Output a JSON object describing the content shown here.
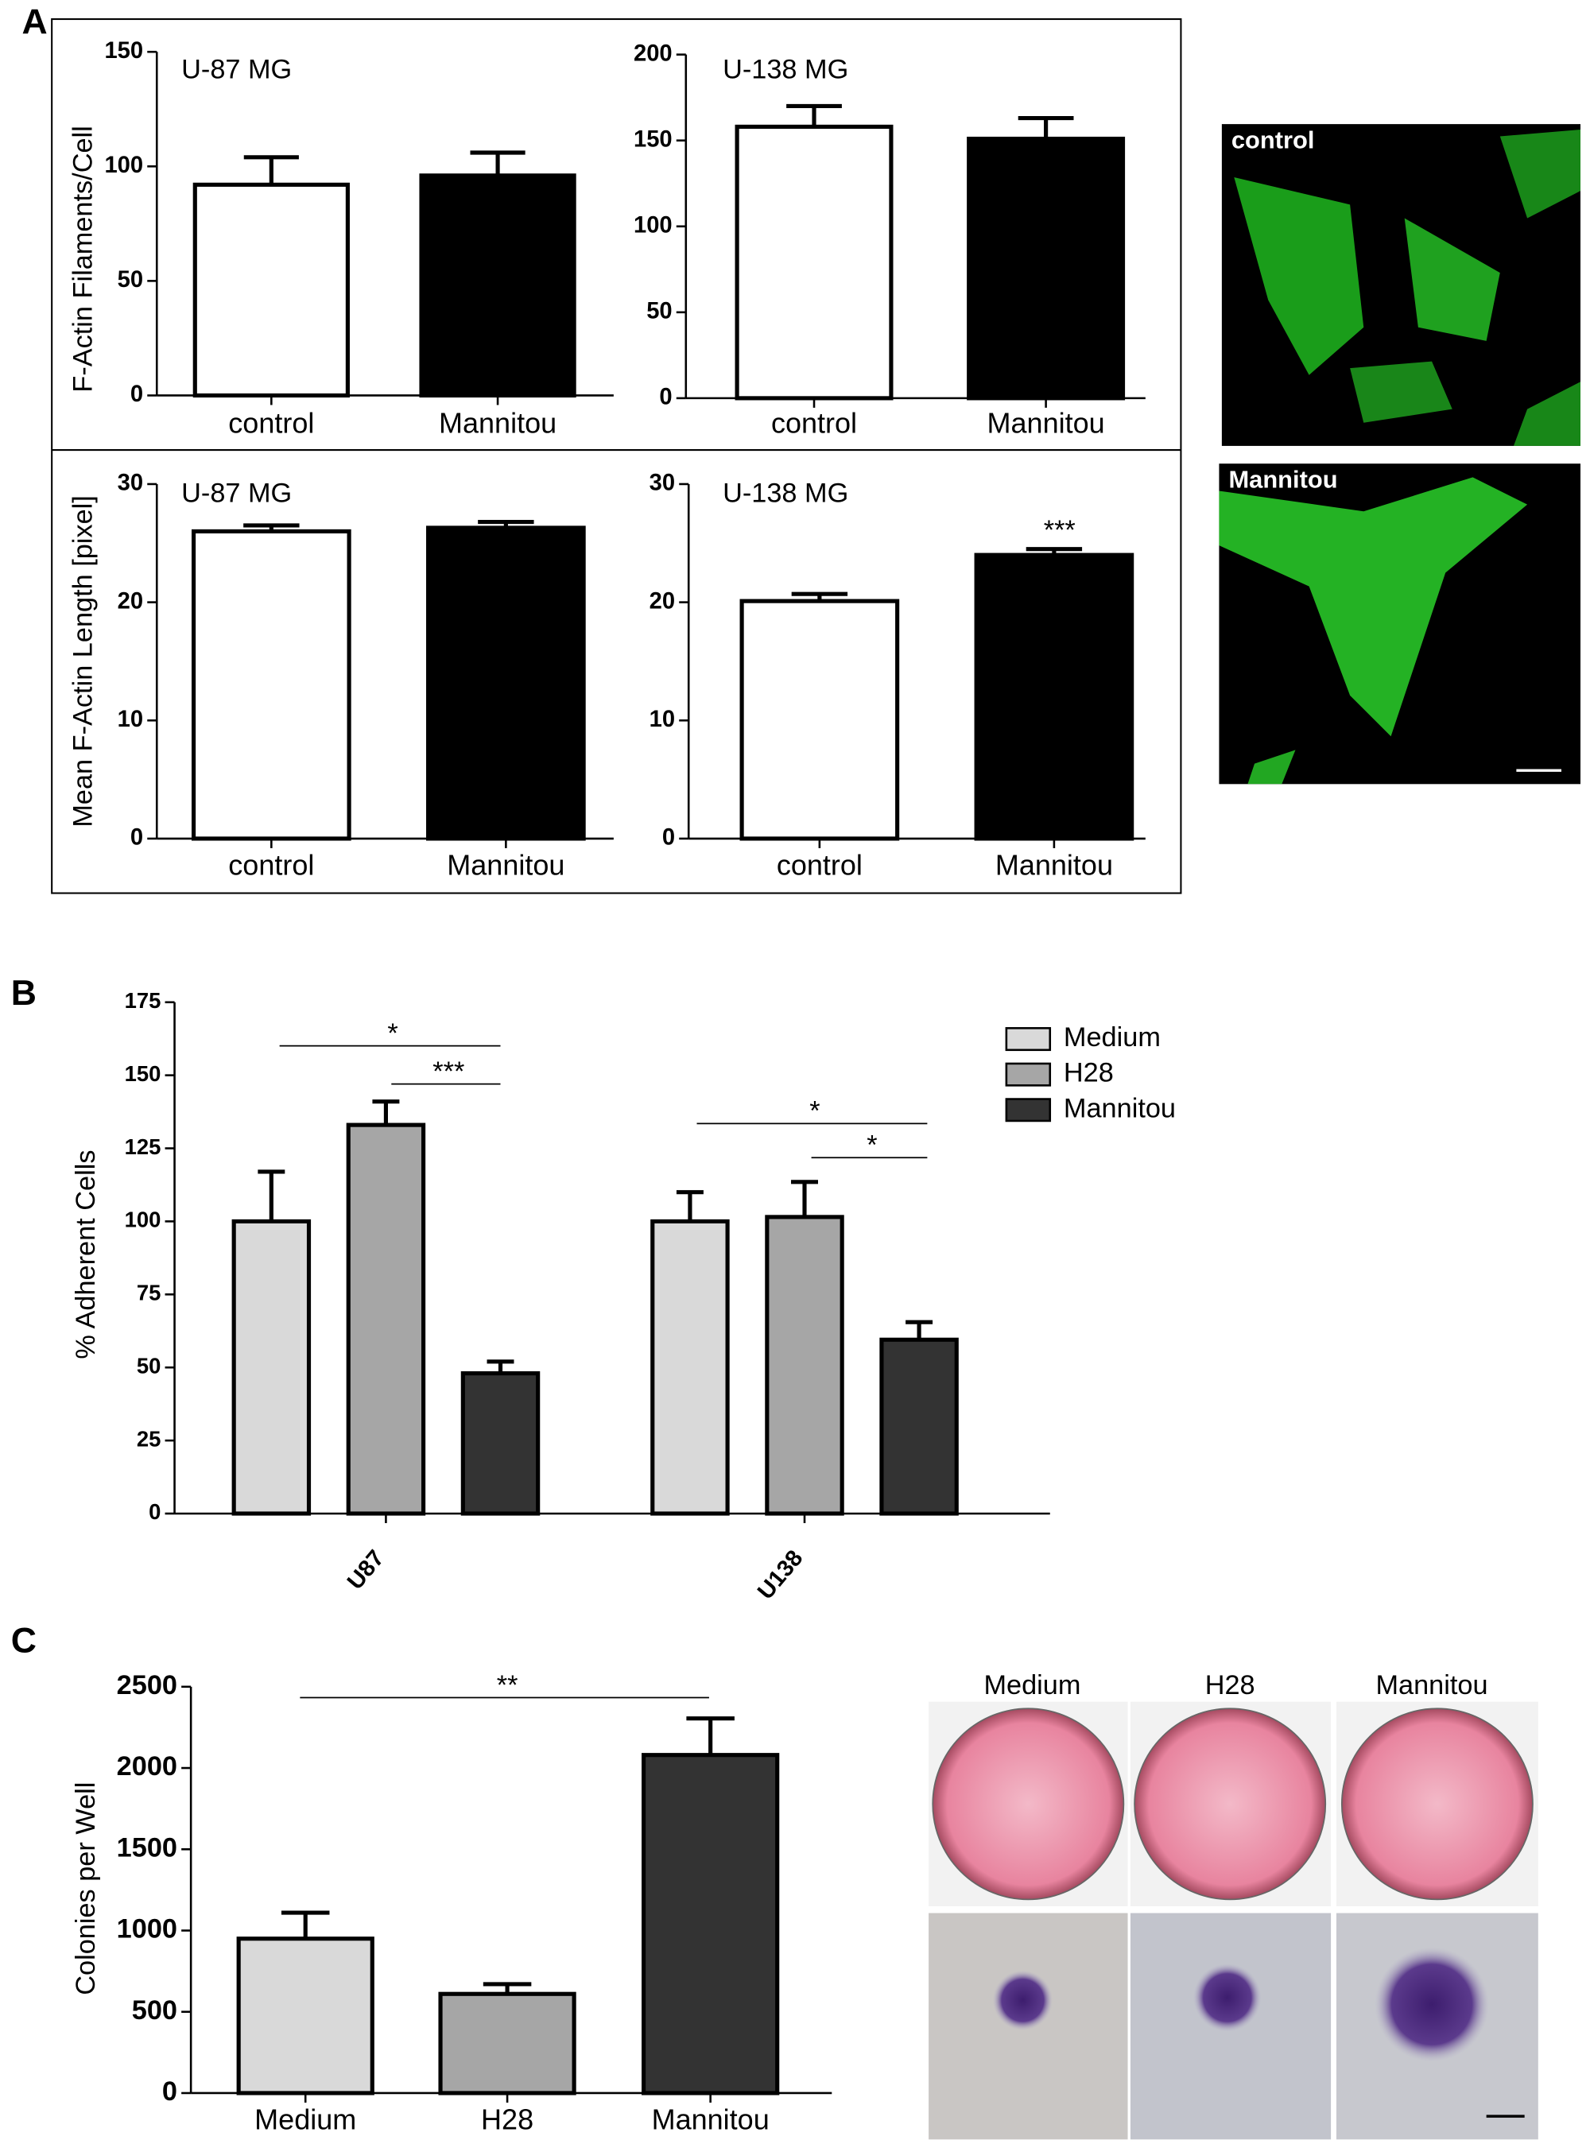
{
  "panel_labels": [
    "A",
    "B",
    "C"
  ],
  "images": {
    "A": [
      "control",
      "Mannitou"
    ],
    "C": [
      "Medium",
      "H28",
      "Mannitou"
    ]
  },
  "chart_data": [
    {
      "type": "bar",
      "title": "U-87 MG",
      "y_label": "F-Actin Filaments/Cell",
      "categories": [
        "control",
        "Mannitou"
      ],
      "values": [
        92,
        96
      ],
      "errors": [
        12,
        10
      ],
      "colors": [
        "#ffffff",
        "#000000"
      ],
      "ylim": [
        0,
        150
      ],
      "yticks": [
        0,
        50,
        100,
        150
      ]
    },
    {
      "type": "bar",
      "title": "U-138 MG",
      "categories": [
        "control",
        "Mannitou"
      ],
      "values": [
        158,
        151
      ],
      "errors": [
        12,
        12
      ],
      "colors": [
        "#ffffff",
        "#000000"
      ],
      "ylim": [
        0,
        200
      ],
      "yticks": [
        0,
        50,
        100,
        150,
        200
      ]
    },
    {
      "type": "bar",
      "title": "U-87 MG",
      "y_label": "Mean F-Actin Length [pixel]",
      "categories": [
        "control",
        "Mannitou"
      ],
      "values": [
        26,
        26.3
      ],
      "errors": [
        0.5,
        0.5
      ],
      "colors": [
        "#ffffff",
        "#000000"
      ],
      "ylim": [
        0,
        30
      ],
      "yticks": [
        0,
        10,
        20,
        30
      ]
    },
    {
      "type": "bar",
      "title": "U-138 MG",
      "categories": [
        "control",
        "Mannitou"
      ],
      "values": [
        20.1,
        24
      ],
      "errors": [
        0.6,
        0.5
      ],
      "colors": [
        "#ffffff",
        "#000000"
      ],
      "ylim": [
        0,
        30
      ],
      "yticks": [
        0,
        10,
        20,
        30
      ],
      "annotations": [
        "***"
      ]
    },
    {
      "type": "grouped_bar",
      "y_label": "% Adherent Cells",
      "categories": [
        "U87",
        "U138"
      ],
      "series": [
        {
          "name": "Medium",
          "color": "#d9d9d9",
          "values": [
            100,
            100
          ],
          "errors": [
            17,
            10
          ]
        },
        {
          "name": "H28",
          "color": "#a6a6a6",
          "values": [
            133,
            101.5
          ],
          "errors": [
            8,
            12
          ]
        },
        {
          "name": "Mannitou",
          "color": "#333333",
          "values": [
            48,
            59.5
          ],
          "errors": [
            4,
            6
          ]
        }
      ],
      "ylim": [
        0,
        175
      ],
      "yticks": [
        0,
        25,
        50,
        75,
        100,
        125,
        150,
        175
      ],
      "annotations": [
        "*",
        "***",
        "*",
        "*"
      ]
    },
    {
      "type": "bar",
      "y_label": "Colonies per Well",
      "categories": [
        "Medium",
        "H28",
        "Mannitou"
      ],
      "values": [
        950,
        610,
        2080
      ],
      "errors": [
        160,
        60,
        225
      ],
      "colors": [
        "#d9d9d9",
        "#a6a6a6",
        "#333333"
      ],
      "ylim": [
        0,
        2500
      ],
      "yticks": [
        0,
        500,
        1000,
        1500,
        2000,
        2500
      ],
      "annotations": [
        "**"
      ]
    }
  ]
}
